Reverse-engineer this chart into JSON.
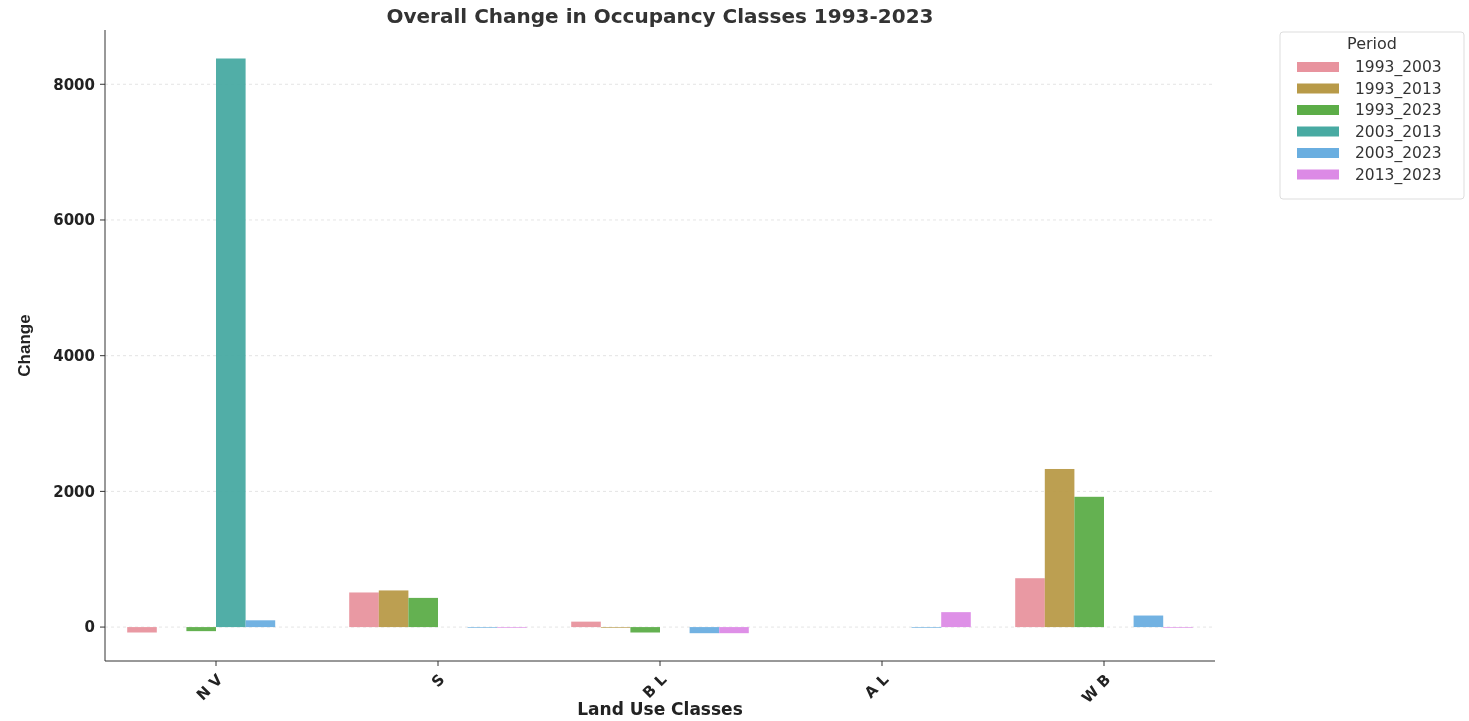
{
  "chart_data": {
    "type": "bar",
    "title": "Overall Change in Occupancy Classes 1993-2023",
    "xlabel": "Land Use Classes",
    "ylabel": "Change",
    "legend_title": "Period",
    "categories": [
      "N V",
      "S",
      "B L",
      "A L",
      "W B"
    ],
    "series": [
      {
        "name": "1993_2003",
        "color": "#e8939e",
        "values": [
          -80,
          510,
          80,
          0,
          720
        ]
      },
      {
        "name": "1993_2013",
        "color": "#b89a48",
        "values": [
          0,
          540,
          -10,
          0,
          2330
        ]
      },
      {
        "name": "1993_2023",
        "color": "#5cad48",
        "values": [
          -60,
          430,
          -80,
          0,
          1920
        ]
      },
      {
        "name": "2003_2013",
        "color": "#48aaa2",
        "values": [
          8380,
          0,
          0,
          0,
          0
        ]
      },
      {
        "name": "2003_2023",
        "color": "#6aaee0",
        "values": [
          100,
          -10,
          -90,
          -10,
          170
        ]
      },
      {
        "name": "2013_2023",
        "color": "#dc8ae6",
        "values": [
          0,
          -10,
          -90,
          220,
          -10
        ]
      }
    ],
    "ylim": [
      -500,
      8800
    ],
    "yticks": [
      0,
      2000,
      4000,
      6000,
      8000
    ],
    "grid": "y",
    "legend": "top right"
  }
}
